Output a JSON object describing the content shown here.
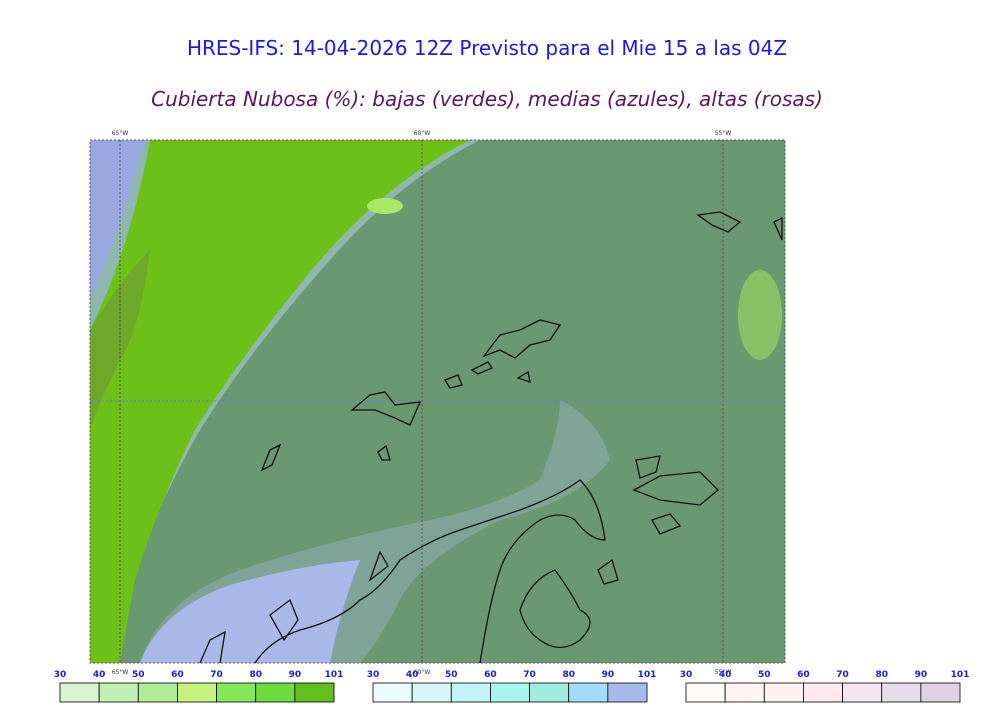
{
  "title": "HRES-IFS: 14-04-2026 12Z Previsto para el Mie 15 a las 04Z",
  "subtitle": "Cubierta Nubosa (%): bajas (verdes), medias (azules), altas (rosas)",
  "map": {
    "longitude_labels": [
      "65°W",
      "60°W",
      "55°W"
    ]
  },
  "legends": [
    {
      "ticks": [
        30,
        40,
        50,
        60,
        70,
        80,
        90,
        101
      ],
      "colors": [
        "#d8f5d0",
        "#c2f0b2",
        "#b0ec98",
        "#c6f27e",
        "#86e858",
        "#6edc3e",
        "#62bf1e"
      ]
    },
    {
      "ticks": [
        30,
        40,
        50,
        60,
        70,
        80,
        90,
        101
      ],
      "colors": [
        "#ecfbfc",
        "#d8f6fa",
        "#c2f4f6",
        "#aaf4ee",
        "#a0ecde",
        "#a2dcf8",
        "#a8baec"
      ]
    },
    {
      "ticks": [
        30,
        40,
        50,
        60,
        70,
        80,
        90,
        101
      ],
      "colors": [
        "#fffafa",
        "#fff2f4",
        "#fcf0f2",
        "#fce8ee",
        "#f4e6f0",
        "#e8dcec",
        "#e0d2e4"
      ]
    }
  ]
}
